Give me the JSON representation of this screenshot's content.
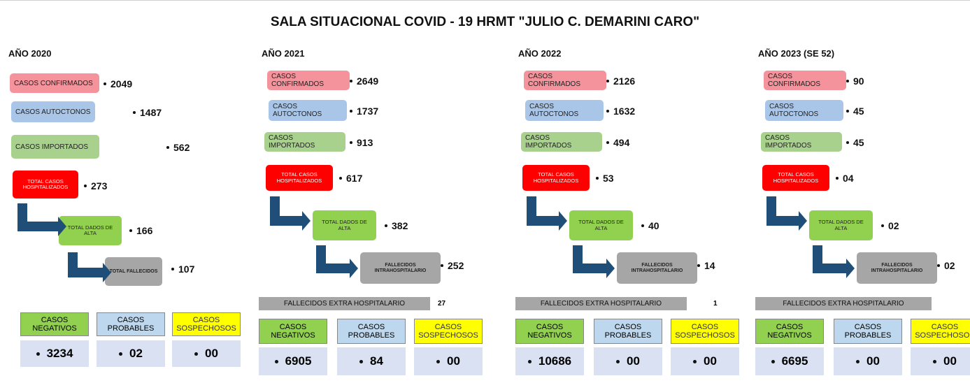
{
  "title": "SALA SITUACIONAL COVID - 19 HRMT \"JULIO C. DEMARINI CARO\"",
  "years": [
    {
      "year": "AÑO 2020",
      "rows": [
        {
          "label": "CASOS CONFIRMADOS",
          "value": "2049"
        },
        {
          "label": "CASOS AUTOCTONOS",
          "value": "1487"
        },
        {
          "label": "CASOS IMPORTADOS",
          "value": "562"
        }
      ],
      "hospitalizados": {
        "label": "TOTAL CASOS HOSPITALIZADOS",
        "value": "273"
      },
      "alta": {
        "label": "TOTAL DADOS DE ALTA",
        "value": "166"
      },
      "fallecidos": {
        "label": "TOTAL FALLECIDOS",
        "value": "107"
      },
      "tests": [
        {
          "label": "CASOS NEGATIVOS",
          "value": "3234"
        },
        {
          "label": "CASOS PROBABLES",
          "value": "02"
        },
        {
          "label": "CASOS SOSPECHOSOS",
          "value": "00"
        }
      ]
    },
    {
      "year": "AÑO 2021",
      "rows": [
        {
          "label": "CASOS CONFIRMADOS",
          "value": "2649"
        },
        {
          "label": "CASOS AUTOCTONOS",
          "value": "1737"
        },
        {
          "label": "CASOS IMPORTADOS",
          "value": "913"
        }
      ],
      "hospitalizados": {
        "label": "TOTAL CASOS HOSPITALIZADOS",
        "value": "617"
      },
      "alta": {
        "label": "TOTAL DADOS DE ALTA",
        "value": "382"
      },
      "fallecidos": {
        "label": "FALLECIDOS INTRAHOSPITALARIO",
        "value": "252"
      },
      "extra": {
        "label": "FALLECIDOS EXTRA HOSPITALARIO",
        "value": "27"
      },
      "tests": [
        {
          "label": "CASOS NEGATIVOS",
          "value": "6905"
        },
        {
          "label": "CASOS PROBABLES",
          "value": "84"
        },
        {
          "label": "CASOS SOSPECHOSOS",
          "value": "00"
        }
      ]
    },
    {
      "year": "AÑO 2022",
      "rows": [
        {
          "label": "CASOS CONFIRMADOS",
          "value": "2126"
        },
        {
          "label": "CASOS AUTOCTONOS",
          "value": "1632"
        },
        {
          "label": "CASOS IMPORTADOS",
          "value": "494"
        }
      ],
      "hospitalizados": {
        "label": "TOTAL CASOS HOSPITALIZADOS",
        "value": "53"
      },
      "alta": {
        "label": "TOTAL DADOS DE ALTA",
        "value": "40"
      },
      "fallecidos": {
        "label": "FALLECIDOS INTRAHOSPITALARIO",
        "value": "14"
      },
      "extra": {
        "label": "FALLECIDOS EXTRA HOSPITALARIO",
        "value": "1"
      },
      "tests": [
        {
          "label": "CASOS NEGATIVOS",
          "value": "10686"
        },
        {
          "label": "CASOS PROBABLES",
          "value": "00"
        },
        {
          "label": "CASOS SOSPECHOSOS",
          "value": "00"
        }
      ]
    },
    {
      "year": "AÑO 2023 (SE 52)",
      "rows": [
        {
          "label": "CASOS CONFIRMADOS",
          "value": "90"
        },
        {
          "label": "CASOS AUTOCTONOS",
          "value": "45"
        },
        {
          "label": "CASOS IMPORTADOS",
          "value": "45"
        }
      ],
      "hospitalizados": {
        "label": "TOTAL CASOS HOSPITALIZADOS",
        "value": "04"
      },
      "alta": {
        "label": "TOTAL DADOS DE ALTA",
        "value": "02"
      },
      "fallecidos": {
        "label": "FALLECIDOS INTRAHOSPITALARIO",
        "value": "02"
      },
      "extra": {
        "label": "FALLECIDOS EXTRA HOSPITALARIO"
      },
      "tests": [
        {
          "label": "CASOS NEGATIVOS",
          "value": "6695"
        },
        {
          "label": "CASOS PROBABLES",
          "value": "00"
        },
        {
          "label": "CASOS SOSPECHOSOS",
          "value": "00"
        }
      ]
    }
  ]
}
